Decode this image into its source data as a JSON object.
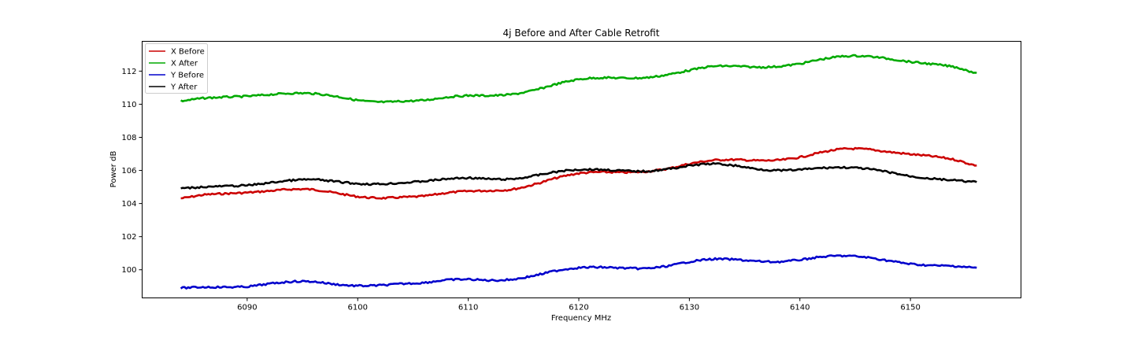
{
  "chart_data": {
    "type": "line",
    "title": "4j Before and After Cable Retrofit",
    "xlabel": "Frequency MHz",
    "ylabel": "Power dB",
    "xlim": [
      6080.5,
      6160.0
    ],
    "ylim": [
      98.3,
      113.8
    ],
    "xticks": [
      6090,
      6100,
      6110,
      6120,
      6130,
      6140,
      6150
    ],
    "yticks": [
      100,
      102,
      104,
      106,
      108,
      110,
      112
    ],
    "legend_position": "top-left",
    "grid": false,
    "x": [
      6084,
      6086,
      6088,
      6090,
      6092,
      6094,
      6096,
      6098,
      6100,
      6102,
      6104,
      6106,
      6108,
      6110,
      6112,
      6114,
      6116,
      6118,
      6120,
      6122,
      6124,
      6126,
      6128,
      6130,
      6132,
      6134,
      6136,
      6138,
      6140,
      6142,
      6144,
      6146,
      6148,
      6150,
      6152,
      6154,
      6156
    ],
    "series": [
      {
        "name": "X Before",
        "color": "#cc0000",
        "values": [
          104.32,
          104.52,
          104.6,
          104.66,
          104.76,
          104.86,
          104.84,
          104.64,
          104.42,
          104.33,
          104.38,
          104.45,
          104.64,
          104.75,
          104.78,
          104.86,
          105.16,
          105.55,
          105.82,
          105.9,
          105.88,
          105.93,
          106.1,
          106.4,
          106.6,
          106.65,
          106.6,
          106.62,
          106.8,
          107.1,
          107.3,
          107.28,
          107.12,
          106.98,
          106.85,
          106.65,
          106.3
        ]
      },
      {
        "name": "X After",
        "color": "#00aa00",
        "values": [
          110.2,
          110.36,
          110.43,
          110.48,
          110.58,
          110.66,
          110.64,
          110.48,
          110.24,
          110.13,
          110.18,
          110.24,
          110.42,
          110.52,
          110.52,
          110.6,
          110.85,
          111.22,
          111.5,
          111.6,
          111.58,
          111.6,
          111.78,
          112.05,
          112.28,
          112.3,
          112.24,
          112.28,
          112.45,
          112.72,
          112.9,
          112.9,
          112.75,
          112.56,
          112.42,
          112.25,
          111.9
        ]
      },
      {
        "name": "Y Before",
        "color": "#0000cc",
        "values": [
          98.9,
          98.95,
          98.95,
          98.98,
          99.15,
          99.28,
          99.28,
          99.12,
          99.03,
          99.06,
          99.15,
          99.22,
          99.38,
          99.42,
          99.36,
          99.42,
          99.65,
          99.95,
          100.12,
          100.15,
          100.1,
          100.08,
          100.22,
          100.48,
          100.64,
          100.62,
          100.52,
          100.48,
          100.6,
          100.78,
          100.84,
          100.75,
          100.55,
          100.35,
          100.26,
          100.22,
          100.12
        ]
      },
      {
        "name": "Y After",
        "color": "#000000",
        "values": [
          104.92,
          105.0,
          105.05,
          105.1,
          105.25,
          105.4,
          105.45,
          105.33,
          105.2,
          105.18,
          105.25,
          105.35,
          105.48,
          105.55,
          105.48,
          105.48,
          105.68,
          105.92,
          106.05,
          106.05,
          105.98,
          105.95,
          106.08,
          106.28,
          106.4,
          106.3,
          106.1,
          106.0,
          106.05,
          106.15,
          106.18,
          106.1,
          105.9,
          105.65,
          105.5,
          105.4,
          105.3
        ]
      }
    ]
  }
}
